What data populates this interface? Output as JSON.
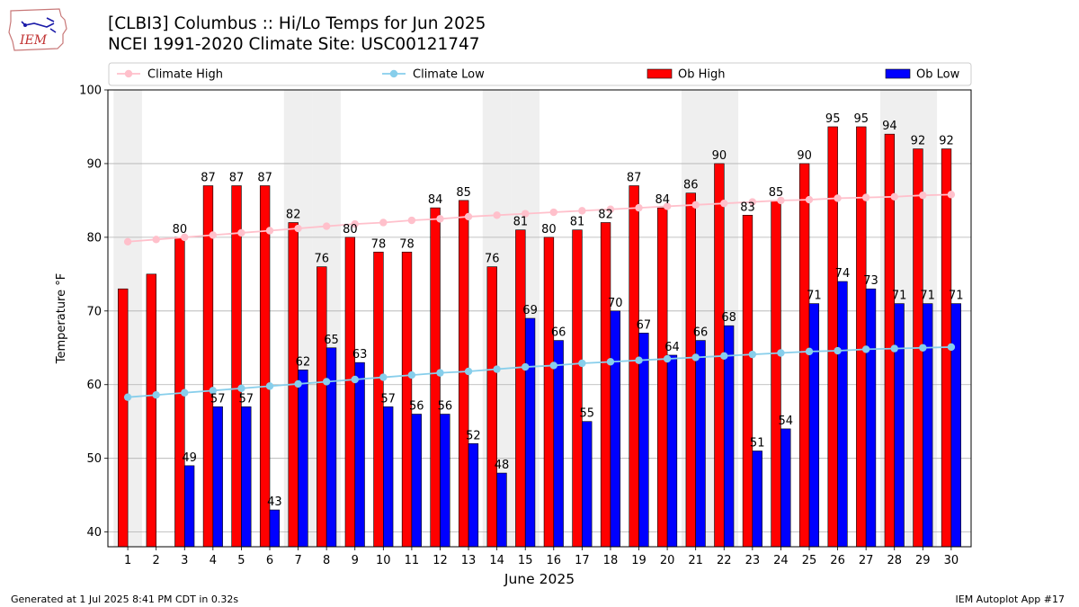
{
  "header": {
    "title_line1": "[CLBI3] Columbus :: Hi/Lo Temps for Jun 2025",
    "title_line2": "NCEI 1991-2020 Climate Site: USC00121747"
  },
  "logo": {
    "text": "IEM",
    "icon": "iowa-state-outline-weather-logo"
  },
  "footer": {
    "left": "Generated at 1 Jul 2025 8:41 PM CDT in 0.32s",
    "right": "IEM Autoplot App #17"
  },
  "colors": {
    "ob_high": "#ff0000",
    "ob_low": "#0000ff",
    "climate_high": "#ffc0cb",
    "climate_low": "#87ceeb",
    "weekend_shade": "#efefef"
  },
  "chart_data": {
    "type": "bar",
    "xlabel": "June 2025",
    "ylabel": "Temperature °F",
    "ylim": [
      38,
      100
    ],
    "yticks": [
      40,
      50,
      60,
      70,
      80,
      90,
      100
    ],
    "grid": true,
    "legend_position": "top",
    "categories": [
      "1",
      "2",
      "3",
      "4",
      "5",
      "6",
      "7",
      "8",
      "9",
      "10",
      "11",
      "12",
      "13",
      "14",
      "15",
      "16",
      "17",
      "18",
      "19",
      "20",
      "21",
      "22",
      "23",
      "24",
      "25",
      "26",
      "27",
      "28",
      "29",
      "30"
    ],
    "shaded_days": [
      1,
      7,
      8,
      14,
      15,
      21,
      22,
      28,
      29
    ],
    "series": [
      {
        "name": "Climate High",
        "kind": "line",
        "values": [
          79.4,
          79.7,
          80.0,
          80.3,
          80.6,
          80.9,
          81.2,
          81.5,
          81.8,
          82.0,
          82.3,
          82.5,
          82.8,
          83.0,
          83.2,
          83.4,
          83.6,
          83.8,
          84.0,
          84.2,
          84.4,
          84.6,
          84.8,
          85.0,
          85.1,
          85.3,
          85.4,
          85.5,
          85.7,
          85.8
        ]
      },
      {
        "name": "Climate Low",
        "kind": "line",
        "values": [
          58.3,
          58.6,
          58.9,
          59.2,
          59.5,
          59.8,
          60.1,
          60.4,
          60.7,
          61.0,
          61.3,
          61.6,
          61.8,
          62.1,
          62.4,
          62.6,
          62.9,
          63.1,
          63.3,
          63.5,
          63.7,
          63.9,
          64.1,
          64.3,
          64.5,
          64.6,
          64.8,
          64.9,
          65.0,
          65.1
        ]
      },
      {
        "name": "Ob High",
        "kind": "bar",
        "labeled_from_day": 3,
        "values": [
          73,
          75,
          80,
          87,
          87,
          87,
          82,
          76,
          80,
          78,
          78,
          84,
          85,
          76,
          81,
          80,
          81,
          82,
          87,
          84,
          86,
          90,
          83,
          85,
          90,
          95,
          95,
          94,
          92,
          92
        ]
      },
      {
        "name": "Ob Low",
        "kind": "bar",
        "values": [
          null,
          null,
          49,
          57,
          57,
          43,
          62,
          65,
          63,
          57,
          56,
          56,
          52,
          48,
          69,
          66,
          55,
          70,
          67,
          64,
          66,
          68,
          51,
          54,
          71,
          74,
          73,
          71,
          71,
          71
        ]
      }
    ]
  }
}
